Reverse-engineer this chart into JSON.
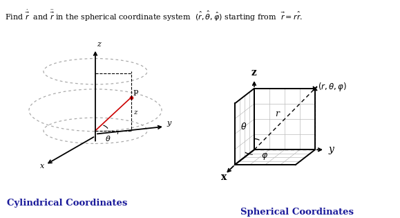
{
  "title_text": "Find $\\dot{\\vec{r}}$  and $\\ddot{\\vec{r}}$ in the spherical coordinate system  $(\\hat{r}, \\hat{\\theta}, \\hat{\\varphi})$ starting from  $\\vec{r} = r\\hat{r}$.",
  "label_cylindrical": "Cylindrical Coordinates",
  "label_spherical": "Spherical Coordinates",
  "bg_color": "#ffffff",
  "text_color": "#000000",
  "grid_color": "#bbbbbb",
  "axis_color": "#000000",
  "dashed_color": "#888888",
  "red_color": "#cc0000",
  "cyl_ellipse_color": "#aaaaaa",
  "figsize": [
    5.79,
    3.15
  ],
  "dpi": 100
}
